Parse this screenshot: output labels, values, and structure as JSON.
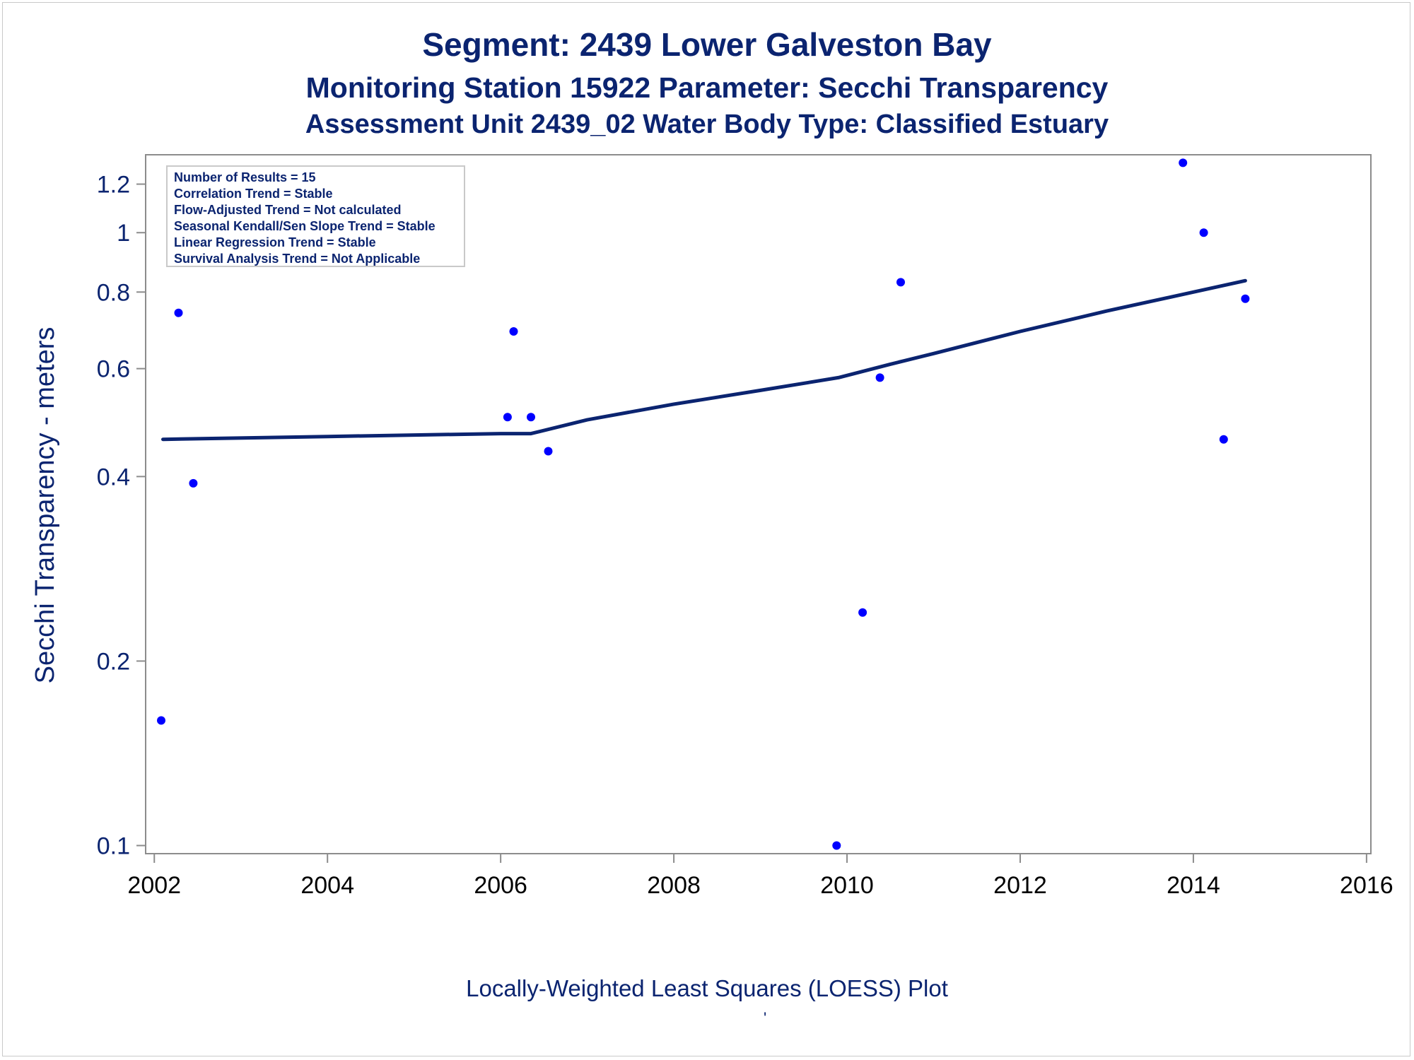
{
  "titles": {
    "line1": "Segment: 2439  Lower Galveston Bay",
    "line2": "Monitoring Station 15922 Parameter: Secchi Transparency",
    "line3": "Assessment Unit 2439_02   Water Body Type: Classified Estuary"
  },
  "footnote": "Locally-Weighted Least Squares (LOESS) Plot",
  "footnote_mark": "'",
  "colors": {
    "text": "#0b2470",
    "points": "#0000ff",
    "loess": "#0b2470",
    "axis": "#8c8c8c"
  },
  "chart_data": {
    "type": "scatter",
    "ylabel": "Secchi Transparency - meters",
    "xlabel": "",
    "y_scale": "log",
    "xlim": [
      2001.9,
      2016.05
    ],
    "ylim": [
      0.097,
      1.34
    ],
    "x_ticks": [
      2002,
      2004,
      2006,
      2008,
      2010,
      2012,
      2014,
      2016
    ],
    "x_tick_labels": [
      "2002",
      "2004",
      "2006",
      "2008",
      "2010",
      "2012",
      "2014",
      "2016"
    ],
    "y_ticks": [
      0.1,
      0.2,
      0.4,
      0.6,
      0.8,
      1,
      1.2
    ],
    "y_tick_labels": [
      "0.1",
      "0.2",
      "0.4",
      "0.6",
      "0.8",
      "1",
      "1.2"
    ],
    "legend_box": [
      "Number of Results = 15",
      "Correlation Trend = Stable",
      "Flow-Adjusted Trend = Not calculated",
      "Seasonal Kendall/Sen Slope Trend = Stable",
      "Linear Regression Trend = Stable",
      "Survival Analysis Trend = Not Applicable"
    ],
    "legend_placement": "top-left inside",
    "grid": false,
    "points": [
      {
        "x": 2002.08,
        "y": 0.16
      },
      {
        "x": 2002.28,
        "y": 0.74
      },
      {
        "x": 2002.45,
        "y": 0.39
      },
      {
        "x": 2006.08,
        "y": 0.5
      },
      {
        "x": 2006.15,
        "y": 0.69
      },
      {
        "x": 2006.35,
        "y": 0.5
      },
      {
        "x": 2006.55,
        "y": 0.44
      },
      {
        "x": 2009.88,
        "y": 0.1
      },
      {
        "x": 2010.18,
        "y": 0.24
      },
      {
        "x": 2010.38,
        "y": 0.58
      },
      {
        "x": 2010.62,
        "y": 0.83
      },
      {
        "x": 2013.88,
        "y": 1.3
      },
      {
        "x": 2014.12,
        "y": 1.0
      },
      {
        "x": 2014.35,
        "y": 0.46
      },
      {
        "x": 2014.6,
        "y": 0.78
      }
    ],
    "loess_line": [
      {
        "x": 2002.1,
        "y": 0.46
      },
      {
        "x": 2004.0,
        "y": 0.465
      },
      {
        "x": 2006.0,
        "y": 0.47
      },
      {
        "x": 2006.35,
        "y": 0.47
      },
      {
        "x": 2007.0,
        "y": 0.495
      },
      {
        "x": 2008.0,
        "y": 0.525
      },
      {
        "x": 2009.0,
        "y": 0.553
      },
      {
        "x": 2009.9,
        "y": 0.58
      },
      {
        "x": 2010.5,
        "y": 0.61
      },
      {
        "x": 2011.0,
        "y": 0.635
      },
      {
        "x": 2012.0,
        "y": 0.69
      },
      {
        "x": 2013.0,
        "y": 0.745
      },
      {
        "x": 2014.0,
        "y": 0.8
      },
      {
        "x": 2014.6,
        "y": 0.835
      }
    ]
  }
}
